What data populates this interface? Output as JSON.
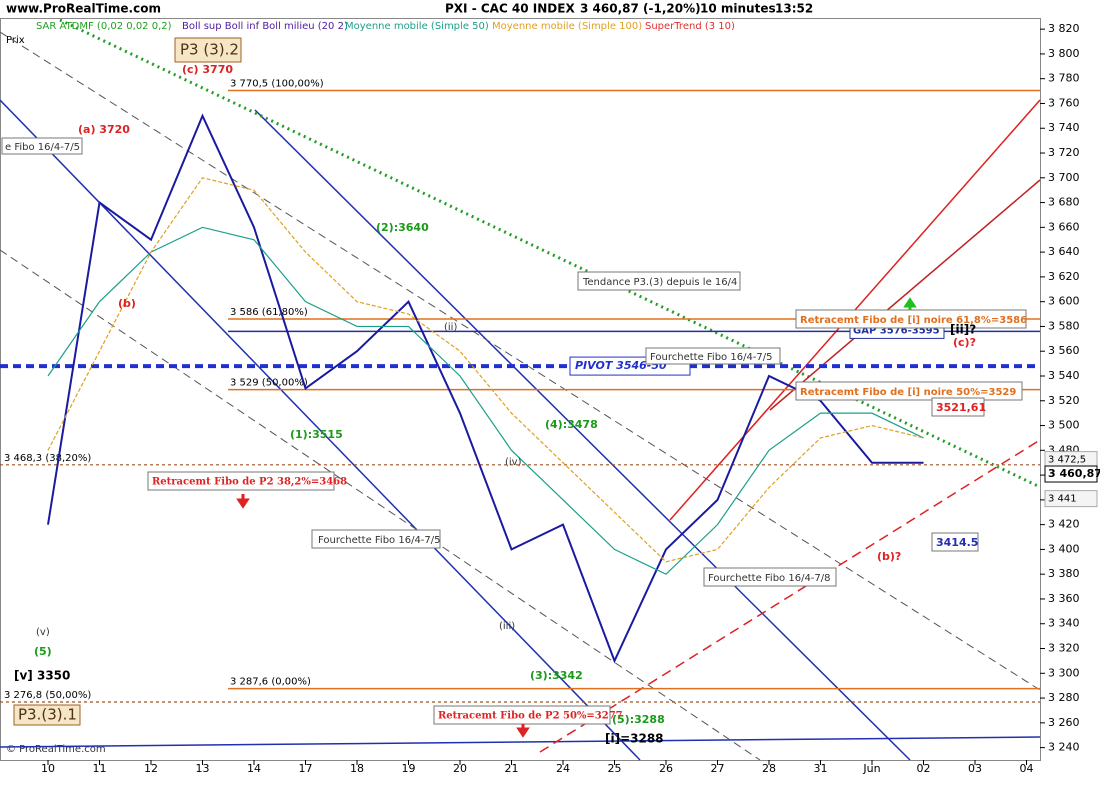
{
  "header": {
    "site": "www.ProRealTime.com",
    "instrument": "PXI - CAC 40 INDEX",
    "quote": "3 460,87 (-1,20%)",
    "interval": "10 minutes",
    "time": "13:52"
  },
  "legend": [
    "SAR ATDMF (0,02 0,02 0,2)",
    "Boll sup Boll inf Boll milieu (20 2)",
    "Moyenne mobile (Simple 50)",
    "Moyenne mobile (Simple 100)",
    "SuperTrend (3 10)"
  ],
  "panel_label": "Prix",
  "copyright": "© ProRealTime.com",
  "chart_data": {
    "type": "line",
    "categories": [
      "10",
      "11",
      "12",
      "13",
      "14",
      "17",
      "18",
      "19",
      "20",
      "21",
      "24",
      "25",
      "26",
      "27",
      "28",
      "31",
      "Jun",
      "02",
      "03",
      "04"
    ],
    "series": [
      {
        "name": "Prix",
        "color": "#1a1aa0",
        "values": [
          3420,
          3680,
          3650,
          3750,
          3660,
          3530,
          3560,
          3600,
          3510,
          3400,
          3420,
          3310,
          3400,
          3440,
          3540,
          3520,
          3470,
          3470,
          null,
          null
        ]
      },
      {
        "name": "Moyenne mobile (Simple 50)",
        "color": "#1aa08a",
        "values": [
          3540,
          3600,
          3640,
          3660,
          3650,
          3600,
          3580,
          3580,
          3540,
          3480,
          3440,
          3400,
          3380,
          3420,
          3480,
          3510,
          3510,
          3490,
          null,
          null
        ]
      },
      {
        "name": "Moyenne mobile (Simple 100)",
        "color": "#e0a020",
        "values": [
          3480,
          3560,
          3640,
          3700,
          3690,
          3640,
          3600,
          3590,
          3560,
          3510,
          3470,
          3430,
          3390,
          3400,
          3450,
          3490,
          3500,
          3490,
          null,
          null
        ]
      }
    ],
    "ylim": [
      3230,
      3829
    ],
    "yticks": [
      {
        "value": 3240,
        "label": "3 240"
      },
      {
        "value": 3260,
        "label": "3 260"
      },
      {
        "value": 3280,
        "label": "3 280"
      },
      {
        "value": 3300,
        "label": "3 300"
      },
      {
        "value": 3320,
        "label": "3 320"
      },
      {
        "value": 3340,
        "label": "3 340"
      },
      {
        "value": 3360,
        "label": "3 360"
      },
      {
        "value": 3380,
        "label": "3 380"
      },
      {
        "value": 3400,
        "label": "3 400"
      },
      {
        "value": 3420,
        "label": "3 420"
      },
      {
        "value": 3440,
        "label": "3 440"
      },
      {
        "value": 3460,
        "label": "3 460"
      },
      {
        "value": 3480,
        "label": "3 480"
      },
      {
        "value": 3500,
        "label": "3 500"
      },
      {
        "value": 3520,
        "label": "3 520"
      },
      {
        "value": 3540,
        "label": "3 540"
      },
      {
        "value": 3560,
        "label": "3 560"
      },
      {
        "value": 3580,
        "label": "3 580"
      },
      {
        "value": 3600,
        "label": "3 600"
      },
      {
        "value": 3620,
        "label": "3 620"
      },
      {
        "value": 3640,
        "label": "3 640"
      },
      {
        "value": 3660,
        "label": "3 660"
      },
      {
        "value": 3680,
        "label": "3 680"
      },
      {
        "value": 3700,
        "label": "3 700"
      },
      {
        "value": 3720,
        "label": "3 720"
      },
      {
        "value": 3740,
        "label": "3 740"
      },
      {
        "value": 3760,
        "label": "3 760"
      },
      {
        "value": 3780,
        "label": "3 780"
      },
      {
        "value": 3800,
        "label": "3 800"
      },
      {
        "value": 3820,
        "label": "3 820"
      }
    ],
    "levels": [
      {
        "value": 3770.5,
        "label": "3 770,5 (100,00%)",
        "color": "#e07020"
      },
      {
        "value": 3586,
        "label": "3 586 (61,80%)",
        "color": "#e07020"
      },
      {
        "value": 3529,
        "label": "3 529 (50,00%)",
        "color": "#e07020"
      },
      {
        "value": 3468.3,
        "label": "3 468,3 (38,20%)",
        "color": "#a05020"
      },
      {
        "value": 3287.6,
        "label": "3 287,6 (0,00%)",
        "color": "#e07020"
      },
      {
        "value": 3276.8,
        "label": "3 276,8 (50,00%)",
        "color": "#a05020"
      }
    ],
    "pivot": {
      "value": 3548,
      "label": "PIVOT 3546-50",
      "color": "#2030d0"
    },
    "gap": {
      "value": 3576,
      "label": "GAP 3576-3595",
      "color": "#2030a0"
    },
    "price_tags": [
      {
        "value": 3472.5,
        "label": "3 472,5"
      },
      {
        "value": 3460.87,
        "label": "3 460,87"
      },
      {
        "value": 3441,
        "label": "3 441"
      }
    ]
  },
  "annotations": [
    "P3 (3).2",
    "(c) 3770",
    "(a) 3720",
    "(b)",
    "(2):3640",
    "(1):3515",
    "(4):3478",
    "(3):3342",
    "(5):3288",
    "[i]=3288",
    "[v] 3350",
    "P3.(3).1",
    "(5)",
    "(v)",
    "Tendance P3.(3) depuis le 16/4",
    "Retracemt Fibo de P2 38,2%=3468",
    "Retracemt Fibo de P2 50%=3277",
    "Fourchette Fibo 16/4-7/5",
    "Fourchette Fibo 16/4-7/5",
    "Fourchette Fibo 16/4-7/8",
    "e Fibo 16/4-7/5",
    "Retracemt Fibo de [i] noire 61,8%=3586",
    "Retracemt Fibo de [i] noire 50%=3529",
    "[ii]?",
    "(c)?",
    "3521,61",
    "3414.5",
    "(b)?",
    "(iv)",
    "(ii)",
    "(iii)"
  ]
}
